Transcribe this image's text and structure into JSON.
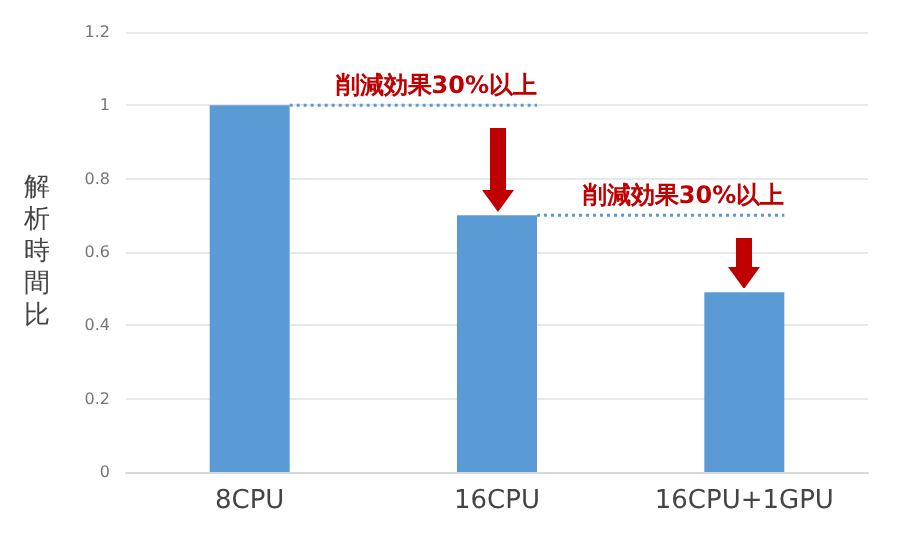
{
  "chart_data": {
    "type": "bar",
    "ylabel": "解析時間比",
    "categories": [
      "8CPU",
      "16CPU",
      "16CPU+1GPU"
    ],
    "values": [
      1,
      0.7,
      0.49
    ],
    "color": "#5b9bd5",
    "ylim": [
      0,
      1.2
    ],
    "yticks": [
      0,
      0.2,
      0.4,
      0.6,
      0.8,
      1,
      1.2
    ],
    "grid": "y",
    "ref_lines": [
      {
        "axis": "y",
        "value": 1,
        "label": "削減効果30%以上",
        "color": "#5b9bd5",
        "line_style": "dotted"
      },
      {
        "axis": "y",
        "value": 0.7,
        "label": "削減効果30%以上",
        "color": "#5b9bd5",
        "line_style": "dotted"
      }
    ]
  }
}
